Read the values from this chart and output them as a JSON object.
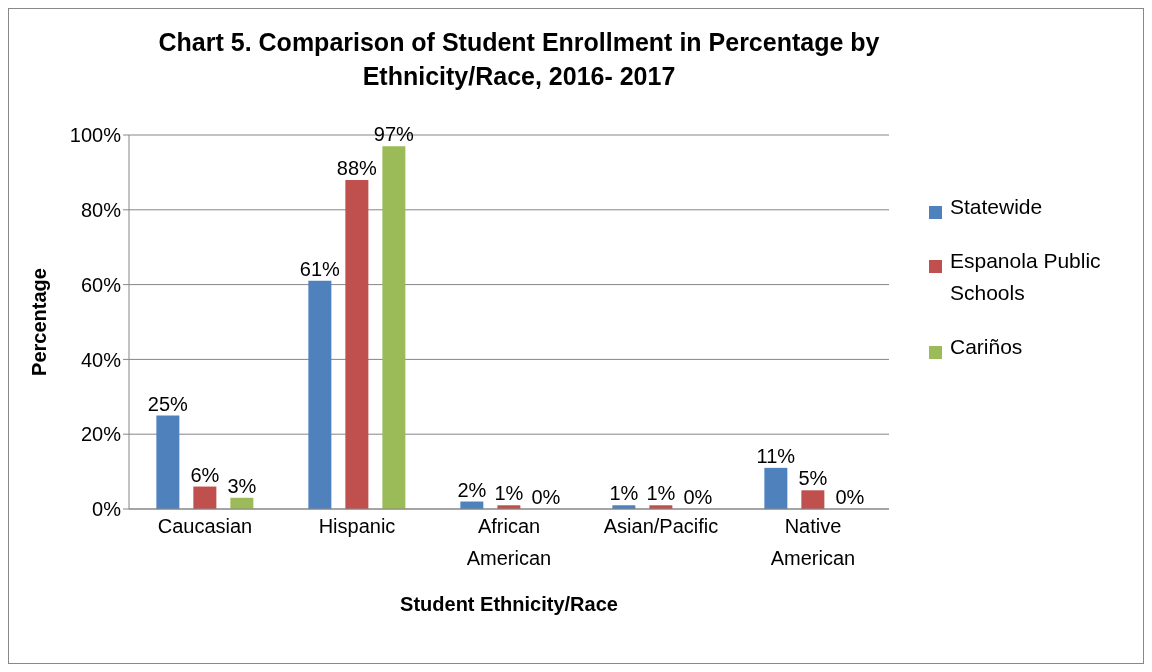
{
  "chart_data": {
    "type": "bar",
    "title": "Chart 5. Comparison of Student Enrollment in Percentage by Ethnicity/Race, 2016- 2017",
    "xlabel": "Student Ethnicity/Race",
    "ylabel": "Percentage",
    "categories": [
      "Caucasian",
      "Hispanic",
      "African American",
      "Asian/Pacific",
      "Native American"
    ],
    "series": [
      {
        "name": "Statewide",
        "color": "#4f81bd",
        "values": [
          25,
          61,
          2,
          1,
          11
        ],
        "value_labels": [
          "25%",
          "61%",
          "2%",
          "1%",
          "11%"
        ]
      },
      {
        "name": "Espanola Public Schools",
        "color": "#c0504d",
        "values": [
          6,
          88,
          1,
          1,
          5
        ],
        "value_labels": [
          "6%",
          "88%",
          "1%",
          "1%",
          "5%"
        ]
      },
      {
        "name": "Cariños",
        "color": "#9bbb59",
        "values": [
          3,
          97,
          0,
          0,
          0
        ],
        "value_labels": [
          "3%",
          "97%",
          "0%",
          "0%",
          "0%"
        ]
      }
    ],
    "ylim": [
      0,
      100
    ],
    "yticks": [
      {
        "value": 0,
        "label": "0%"
      },
      {
        "value": 20,
        "label": "20%"
      },
      {
        "value": 40,
        "label": "40%"
      },
      {
        "value": 60,
        "label": "60%"
      },
      {
        "value": 80,
        "label": "80%"
      },
      {
        "value": 100,
        "label": "100%"
      }
    ],
    "grid": "y",
    "legend": "right"
  }
}
